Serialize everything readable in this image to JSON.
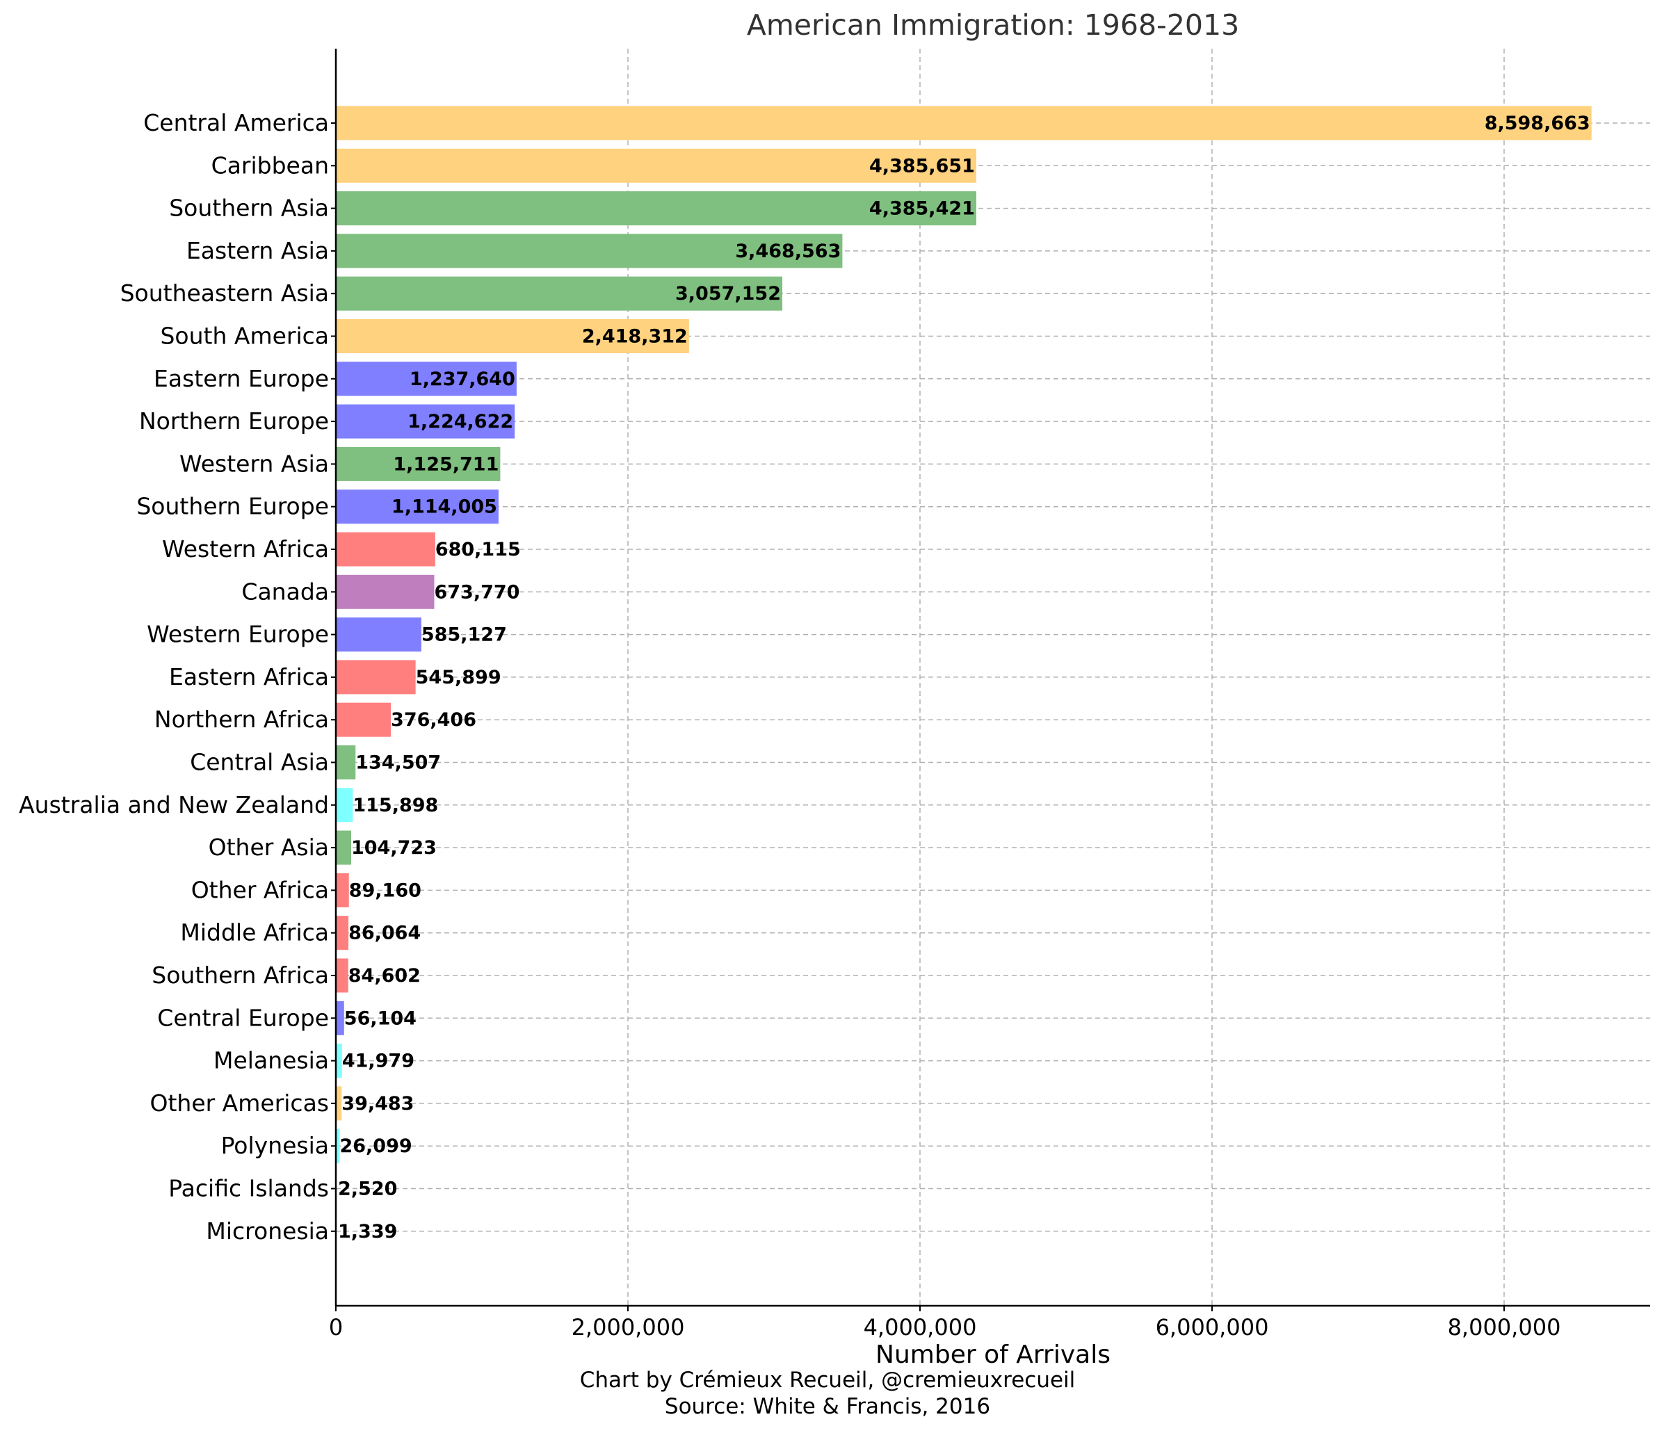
{
  "chart_data": {
    "type": "bar",
    "orientation": "horizontal",
    "title": "American Immigration: 1968-2013",
    "xlabel": "Number of Arrivals",
    "ylabel": "",
    "xlim": [
      0,
      9000000
    ],
    "x_ticks": [
      0,
      2000000,
      4000000,
      6000000,
      8000000
    ],
    "x_tick_labels": [
      "0",
      "2,000,000",
      "4,000,000",
      "6,000,000",
      "8,000,000"
    ],
    "grid": true,
    "grid_style": "dashed",
    "categories": [
      "Central America",
      "Caribbean",
      "Southern Asia",
      "Eastern Asia",
      "Southeastern Asia",
      "South America",
      "Eastern Europe",
      "Northern Europe",
      "Western Asia",
      "Southern Europe",
      "Western Africa",
      "Canada",
      "Western Europe",
      "Eastern Africa",
      "Northern Africa",
      "Central Asia",
      "Australia and New Zealand",
      "Other Asia",
      "Other Africa",
      "Middle Africa",
      "Southern Africa",
      "Central Europe",
      "Melanesia",
      "Other Americas",
      "Polynesia",
      "Pacific Islands",
      "Micronesia"
    ],
    "values": [
      8598663,
      4385651,
      4385421,
      3468563,
      3057152,
      2418312,
      1237640,
      1224622,
      1125711,
      1114005,
      680115,
      673770,
      585127,
      545899,
      376406,
      134507,
      115898,
      104723,
      89160,
      86064,
      84602,
      56104,
      41979,
      39483,
      26099,
      2520,
      1339
    ],
    "value_labels": [
      "8,598,663",
      "4,385,651",
      "4,385,421",
      "3,468,563",
      "3,057,152",
      "2,418,312",
      "1,237,640",
      "1,224,622",
      "1,125,711",
      "1,114,005",
      "680,115",
      "673,770",
      "585,127",
      "545,899",
      "376,406",
      "134,507",
      "115,898",
      "104,723",
      "89,160",
      "86,064",
      "84,602",
      "56,104",
      "41,979",
      "39,483",
      "26,099",
      "2,520",
      "1,339"
    ],
    "bar_colors": [
      "#ffd27f",
      "#ffd27f",
      "#7fbf7f",
      "#7fbf7f",
      "#7fbf7f",
      "#ffd27f",
      "#7f7fff",
      "#7f7fff",
      "#7fbf7f",
      "#7f7fff",
      "#ff7f7f",
      "#bf7fbf",
      "#7f7fff",
      "#ff7f7f",
      "#ff7f7f",
      "#7fbf7f",
      "#7fffff",
      "#7fbf7f",
      "#ff7f7f",
      "#ff7f7f",
      "#ff7f7f",
      "#7f7fff",
      "#7fffff",
      "#ffd27f",
      "#7fffff",
      "#7fffff",
      "#7fffff"
    ]
  },
  "credits": {
    "line1": "Chart by Crémieux Recueil, @cremieuxrecueil",
    "line2": "Source: White & Francis, 2016"
  }
}
